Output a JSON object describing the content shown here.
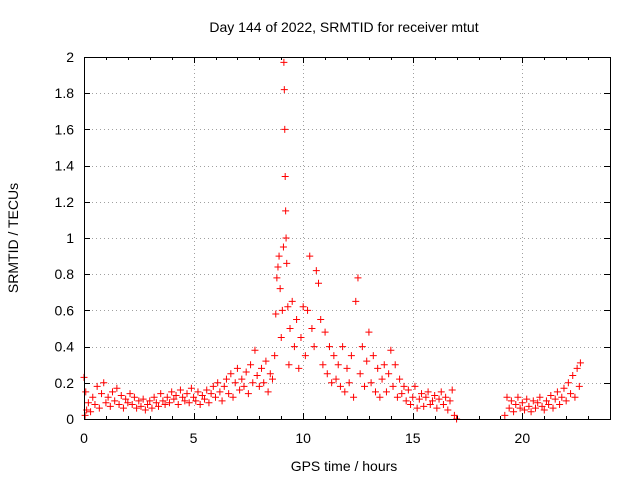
{
  "chart_data": {
    "type": "scatter",
    "title": "Day 144 of 2022, SRMTID for receiver mtut",
    "xlabel": "GPS time / hours",
    "ylabel": "SRMTID / TECUs",
    "xlim": [
      0,
      24
    ],
    "ylim": [
      0,
      2
    ],
    "x_ticks": [
      0,
      5,
      10,
      15,
      20
    ],
    "x_tick_labels": [
      "0",
      "5",
      "10",
      "15",
      "20"
    ],
    "y_ticks": [
      0,
      0.2,
      0.4,
      0.6,
      0.8,
      1,
      1.2,
      1.4,
      1.6,
      1.8,
      2
    ],
    "y_tick_labels": [
      "0",
      "0.2",
      "0.4",
      "0.6",
      "0.8",
      "1",
      "1.2",
      "1.4",
      "1.6",
      "1.8",
      "2"
    ],
    "grid": true,
    "legend": "none",
    "marker": "+",
    "series_color": "#ff0000",
    "series": [
      {
        "points": [
          [
            0.0,
            0.23
          ],
          [
            0.05,
            0.02
          ],
          [
            0.08,
            0.15
          ],
          [
            0.12,
            0.05
          ],
          [
            0.2,
            0.09
          ],
          [
            0.3,
            0.04
          ],
          [
            0.4,
            0.12
          ],
          [
            0.5,
            0.08
          ],
          [
            0.6,
            0.18
          ],
          [
            0.7,
            0.06
          ],
          [
            0.8,
            0.14
          ],
          [
            0.9,
            0.2
          ],
          [
            1.0,
            0.09
          ],
          [
            1.1,
            0.12
          ],
          [
            1.2,
            0.07
          ],
          [
            1.3,
            0.15
          ],
          [
            1.4,
            0.1
          ],
          [
            1.5,
            0.17
          ],
          [
            1.6,
            0.08
          ],
          [
            1.7,
            0.13
          ],
          [
            1.8,
            0.06
          ],
          [
            1.9,
            0.11
          ],
          [
            2.0,
            0.09
          ],
          [
            2.1,
            0.14
          ],
          [
            2.2,
            0.08
          ],
          [
            2.3,
            0.12
          ],
          [
            2.4,
            0.06
          ],
          [
            2.5,
            0.1
          ],
          [
            2.6,
            0.07
          ],
          [
            2.7,
            0.11
          ],
          [
            2.8,
            0.05
          ],
          [
            2.9,
            0.08
          ],
          [
            3.0,
            0.1
          ],
          [
            3.1,
            0.06
          ],
          [
            3.2,
            0.12
          ],
          [
            3.3,
            0.09
          ],
          [
            3.4,
            0.07
          ],
          [
            3.5,
            0.14
          ],
          [
            3.6,
            0.1
          ],
          [
            3.7,
            0.08
          ],
          [
            3.8,
            0.12
          ],
          [
            3.9,
            0.09
          ],
          [
            4.0,
            0.15
          ],
          [
            4.1,
            0.11
          ],
          [
            4.2,
            0.13
          ],
          [
            4.3,
            0.08
          ],
          [
            4.4,
            0.16
          ],
          [
            4.5,
            0.12
          ],
          [
            4.6,
            0.1
          ],
          [
            4.7,
            0.14
          ],
          [
            4.8,
            0.09
          ],
          [
            4.9,
            0.17
          ],
          [
            5.0,
            0.12
          ],
          [
            5.1,
            0.1
          ],
          [
            5.2,
            0.15
          ],
          [
            5.3,
            0.08
          ],
          [
            5.4,
            0.13
          ],
          [
            5.5,
            0.11
          ],
          [
            5.6,
            0.16
          ],
          [
            5.7,
            0.09
          ],
          [
            5.8,
            0.14
          ],
          [
            5.9,
            0.18
          ],
          [
            6.0,
            0.12
          ],
          [
            6.1,
            0.2
          ],
          [
            6.2,
            0.15
          ],
          [
            6.3,
            0.1
          ],
          [
            6.4,
            0.18
          ],
          [
            6.5,
            0.22
          ],
          [
            6.6,
            0.14
          ],
          [
            6.7,
            0.25
          ],
          [
            6.8,
            0.12
          ],
          [
            6.9,
            0.2
          ],
          [
            7.0,
            0.28
          ],
          [
            7.1,
            0.16
          ],
          [
            7.2,
            0.22
          ],
          [
            7.3,
            0.18
          ],
          [
            7.4,
            0.26
          ],
          [
            7.5,
            0.14
          ],
          [
            7.6,
            0.3
          ],
          [
            7.7,
            0.2
          ],
          [
            7.8,
            0.38
          ],
          [
            7.9,
            0.24
          ],
          [
            8.0,
            0.18
          ],
          [
            8.1,
            0.28
          ],
          [
            8.2,
            0.2
          ],
          [
            8.3,
            0.32
          ],
          [
            8.4,
            0.15
          ],
          [
            8.5,
            0.25
          ],
          [
            8.6,
            0.22
          ],
          [
            8.7,
            0.35
          ],
          [
            8.75,
            0.58
          ],
          [
            8.8,
            0.78
          ],
          [
            8.85,
            0.84
          ],
          [
            8.9,
            0.9
          ],
          [
            8.95,
            0.72
          ],
          [
            9.0,
            0.45
          ],
          [
            9.05,
            0.6
          ],
          [
            9.1,
            0.95
          ],
          [
            9.12,
            1.97
          ],
          [
            9.14,
            1.82
          ],
          [
            9.16,
            1.6
          ],
          [
            9.18,
            1.34
          ],
          [
            9.2,
            1.15
          ],
          [
            9.22,
            1.0
          ],
          [
            9.25,
            0.86
          ],
          [
            9.3,
            0.62
          ],
          [
            9.35,
            0.3
          ],
          [
            9.4,
            0.5
          ],
          [
            9.5,
            0.65
          ],
          [
            9.6,
            0.4
          ],
          [
            9.7,
            0.55
          ],
          [
            9.8,
            0.28
          ],
          [
            9.9,
            0.45
          ],
          [
            10.0,
            0.62
          ],
          [
            10.1,
            0.35
          ],
          [
            10.2,
            0.6
          ],
          [
            10.3,
            0.9
          ],
          [
            10.4,
            0.5
          ],
          [
            10.5,
            0.4
          ],
          [
            10.6,
            0.82
          ],
          [
            10.7,
            0.75
          ],
          [
            10.8,
            0.55
          ],
          [
            10.9,
            0.3
          ],
          [
            11.0,
            0.48
          ],
          [
            11.1,
            0.25
          ],
          [
            11.2,
            0.4
          ],
          [
            11.3,
            0.2
          ],
          [
            11.4,
            0.35
          ],
          [
            11.5,
            0.22
          ],
          [
            11.6,
            0.3
          ],
          [
            11.7,
            0.18
          ],
          [
            11.8,
            0.4
          ],
          [
            11.9,
            0.15
          ],
          [
            12.0,
            0.28
          ],
          [
            12.1,
            0.2
          ],
          [
            12.2,
            0.35
          ],
          [
            12.3,
            0.12
          ],
          [
            12.4,
            0.65
          ],
          [
            12.5,
            0.78
          ],
          [
            12.6,
            0.25
          ],
          [
            12.7,
            0.4
          ],
          [
            12.8,
            0.18
          ],
          [
            12.9,
            0.32
          ],
          [
            13.0,
            0.48
          ],
          [
            13.1,
            0.2
          ],
          [
            13.2,
            0.35
          ],
          [
            13.3,
            0.15
          ],
          [
            13.4,
            0.28
          ],
          [
            13.5,
            0.12
          ],
          [
            13.6,
            0.22
          ],
          [
            13.7,
            0.3
          ],
          [
            13.8,
            0.15
          ],
          [
            13.9,
            0.25
          ],
          [
            14.0,
            0.38
          ],
          [
            14.1,
            0.18
          ],
          [
            14.2,
            0.3
          ],
          [
            14.3,
            0.12
          ],
          [
            14.4,
            0.22
          ],
          [
            14.5,
            0.14
          ],
          [
            14.6,
            0.18
          ],
          [
            14.7,
            0.1
          ],
          [
            14.8,
            0.16
          ],
          [
            14.9,
            0.08
          ],
          [
            15.0,
            0.12
          ],
          [
            15.1,
            0.18
          ],
          [
            15.2,
            0.06
          ],
          [
            15.3,
            0.11
          ],
          [
            15.4,
            0.14
          ],
          [
            15.5,
            0.07
          ],
          [
            15.6,
            0.12
          ],
          [
            15.7,
            0.15
          ],
          [
            15.8,
            0.08
          ],
          [
            15.9,
            0.1
          ],
          [
            16.0,
            0.13
          ],
          [
            16.1,
            0.06
          ],
          [
            16.2,
            0.11
          ],
          [
            16.3,
            0.15
          ],
          [
            16.4,
            0.08
          ],
          [
            16.5,
            0.12
          ],
          [
            16.6,
            0.05
          ],
          [
            16.7,
            0.1
          ],
          [
            16.8,
            0.16
          ],
          [
            16.9,
            0.02
          ],
          [
            17.0,
            0.0
          ],
          [
            19.2,
            0.02
          ],
          [
            19.3,
            0.12
          ],
          [
            19.4,
            0.06
          ],
          [
            19.5,
            0.1
          ],
          [
            19.6,
            0.04
          ],
          [
            19.7,
            0.08
          ],
          [
            19.8,
            0.12
          ],
          [
            19.9,
            0.06
          ],
          [
            20.0,
            0.09
          ],
          [
            20.1,
            0.05
          ],
          [
            20.2,
            0.11
          ],
          [
            20.3,
            0.07
          ],
          [
            20.4,
            0.04
          ],
          [
            20.5,
            0.1
          ],
          [
            20.6,
            0.06
          ],
          [
            20.7,
            0.09
          ],
          [
            20.8,
            0.12
          ],
          [
            20.9,
            0.07
          ],
          [
            21.0,
            0.05
          ],
          [
            21.1,
            0.1
          ],
          [
            21.2,
            0.08
          ],
          [
            21.3,
            0.13
          ],
          [
            21.4,
            0.06
          ],
          [
            21.5,
            0.11
          ],
          [
            21.6,
            0.15
          ],
          [
            21.7,
            0.08
          ],
          [
            21.8,
            0.12
          ],
          [
            21.9,
            0.17
          ],
          [
            22.0,
            0.1
          ],
          [
            22.1,
            0.2
          ],
          [
            22.2,
            0.14
          ],
          [
            22.3,
            0.24
          ],
          [
            22.4,
            0.12
          ],
          [
            22.5,
            0.28
          ],
          [
            22.6,
            0.18
          ],
          [
            22.65,
            0.31
          ]
        ]
      }
    ]
  }
}
